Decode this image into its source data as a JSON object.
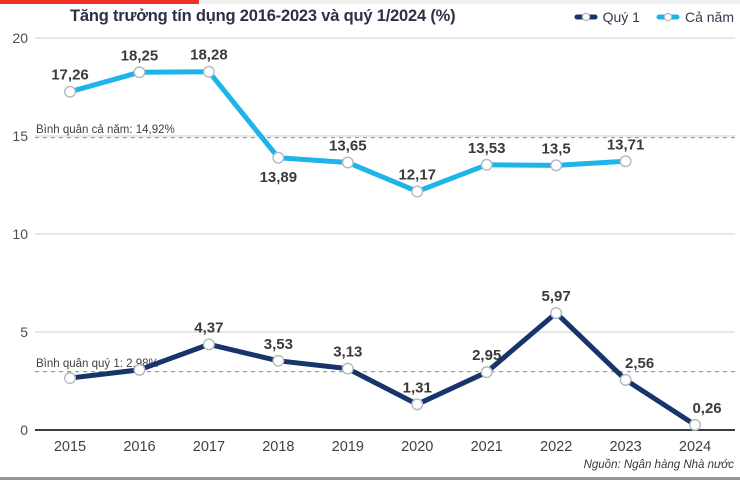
{
  "header": {
    "title": "Tăng trưởng tín dụng 2016-2023 và quý 1/2024 (%)",
    "title_color": "#2b3245"
  },
  "accent": {
    "red_bar_color": "#ee3124",
    "top_strip_color": "#f0f0f0",
    "bottom_bar_color": "#969696"
  },
  "legend": [
    {
      "label": "Quý 1",
      "color": "#17356b"
    },
    {
      "label": "Cả năm",
      "color": "#1eb4e9"
    }
  ],
  "source": "Nguồn: Ngân hàng Nhà nước",
  "chart_data": {
    "type": "line",
    "title": "Tăng trưởng tín dụng 2016-2023 và quý 1/2024 (%)",
    "categories": [
      "2015",
      "2016",
      "2017",
      "2018",
      "2019",
      "2020",
      "2021",
      "2022",
      "2023",
      "2024"
    ],
    "series": [
      {
        "name": "Quý 1",
        "color": "#17356b",
        "values": [
          2.65,
          3.07,
          4.37,
          3.53,
          3.13,
          1.31,
          2.95,
          5.97,
          2.56,
          0.26
        ],
        "labels": [
          "",
          "",
          "4,37",
          "3,53",
          "3,13",
          "1,31",
          "2,95",
          "5,97",
          "2,56",
          "0,26"
        ],
        "label_pos": [
          "above",
          "above",
          "above",
          "above",
          "above",
          "above",
          "above",
          "above",
          "above",
          "above"
        ],
        "label_dx": [
          0,
          0,
          0,
          0,
          0,
          0,
          0,
          0,
          14,
          12
        ]
      },
      {
        "name": "Cả năm",
        "color": "#1eb4e9",
        "values": [
          17.26,
          18.25,
          18.28,
          13.89,
          13.65,
          12.17,
          13.53,
          13.5,
          13.71,
          null
        ],
        "labels": [
          "17,26",
          "18,25",
          "18,28",
          "13,89",
          "13,65",
          "12,17",
          "13,53",
          "13,5",
          "13,71",
          ""
        ],
        "label_pos": [
          "above",
          "above",
          "above",
          "below",
          "above",
          "above",
          "above",
          "above",
          "above",
          "above"
        ],
        "label_dx": [
          0,
          0,
          0,
          0,
          0,
          0,
          0,
          0,
          0,
          0
        ]
      }
    ],
    "avg_lines": [
      {
        "label": "Bình quân cả năm: 14,92%",
        "value": 14.92
      },
      {
        "label": "Bình quân quý 1: 2,98%",
        "value": 2.98
      }
    ],
    "ylim": [
      0,
      20
    ],
    "yticks": [
      0,
      5,
      10,
      15,
      20
    ],
    "ytick_labels": [
      "0",
      "5",
      "10",
      "15",
      "20"
    ],
    "grid": true,
    "legend_position": "top-right",
    "marker_style": {
      "fill": "#ffffff",
      "stroke": "#b4b9c1"
    }
  }
}
